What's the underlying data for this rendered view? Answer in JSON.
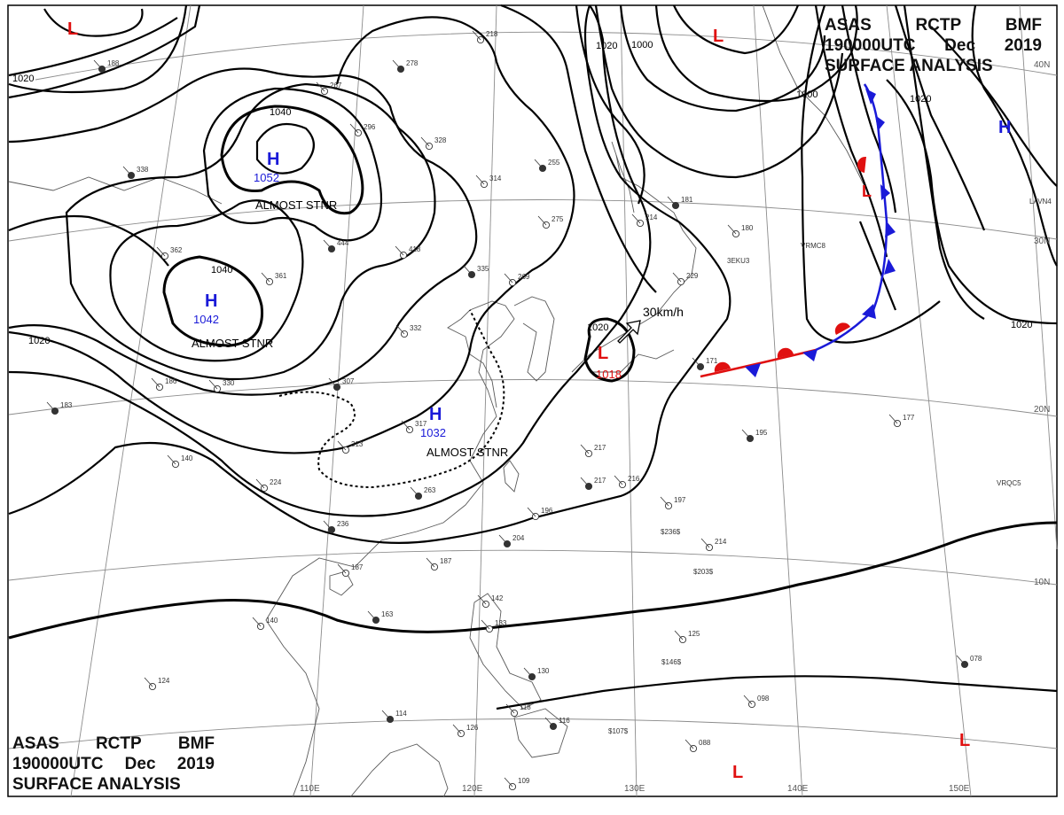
{
  "header": {
    "line1": [
      "ASAS",
      "RCTP",
      "BMF"
    ],
    "line2": [
      "190000UTC",
      "Dec",
      "2019"
    ],
    "line3": "SURFACE ANALYSIS"
  },
  "colors": {
    "high": "#1a1ad8",
    "low": "#e01010",
    "isobar": "#000000",
    "grid": "#8c8c8c",
    "coast": "#5a5a5a"
  },
  "pressure_systems": [
    {
      "type": "H",
      "value": "1052",
      "status": "ALMOST STNR"
    },
    {
      "type": "H",
      "value": "1042",
      "status": "ALMOST STNR"
    },
    {
      "type": "H",
      "value": "1032",
      "status": "ALMOST STNR"
    },
    {
      "type": "L",
      "value": "1018",
      "motion": "30km/h"
    },
    {
      "type": "H",
      "value": ""
    },
    {
      "type": "L",
      "value": ""
    },
    {
      "type": "L",
      "value": ""
    },
    {
      "type": "L",
      "value": ""
    },
    {
      "type": "L",
      "value": ""
    }
  ],
  "isobar_labels": [
    "1020",
    "1040",
    "1040",
    "1020",
    "1020",
    "1000",
    "1020",
    "1000",
    "1020",
    "1020"
  ],
  "front": {
    "type": "stationary"
  },
  "longitude_labels": [
    "110E",
    "120E",
    "130E",
    "140E",
    "150E"
  ],
  "latitude_labels": [
    "40N",
    "30N",
    "20N",
    "10N"
  ],
  "ship_codes": [
    "3EKU3",
    "VRMC8",
    "LAVN4",
    "VRQC5",
    "$236$",
    "$203$",
    "$146$",
    "$107$"
  ],
  "station_pressures": [
    "338",
    "362",
    "267",
    "278",
    "296",
    "328",
    "255",
    "314",
    "275",
    "444",
    "418",
    "361",
    "335",
    "269",
    "332",
    "307",
    "330",
    "186",
    "183",
    "313",
    "317",
    "263",
    "224",
    "140",
    "236",
    "187",
    "187",
    "163",
    "140",
    "124",
    "114",
    "126",
    "118",
    "116",
    "109",
    "217",
    "217",
    "216",
    "196",
    "204",
    "197",
    "214",
    "195",
    "177",
    "180",
    "181",
    "214",
    "229",
    "171",
    "142",
    "133",
    "130",
    "125",
    "098",
    "078",
    "088",
    "218",
    "188"
  ]
}
